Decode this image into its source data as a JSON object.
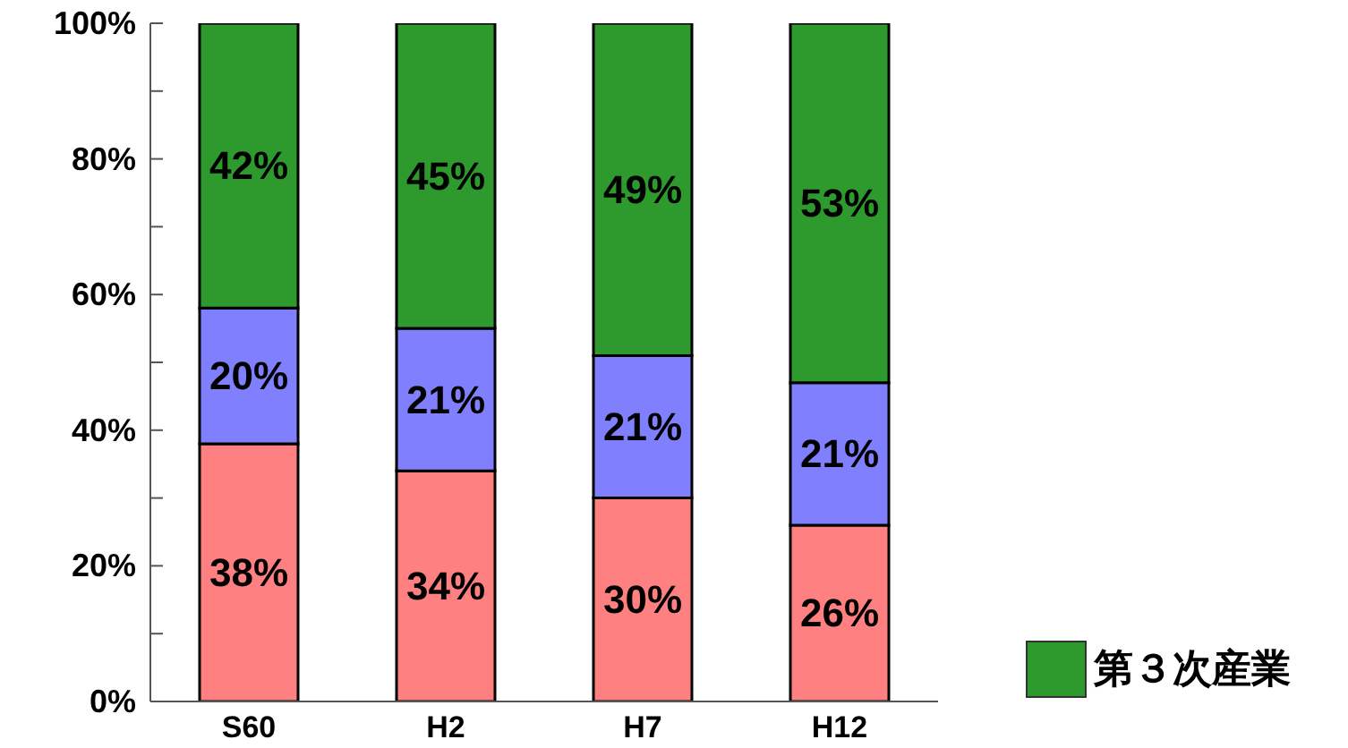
{
  "chart_data": {
    "type": "bar",
    "stacked": true,
    "categories": [
      "S60",
      "H2",
      "H7",
      "H12"
    ],
    "series": [
      {
        "color": "#ff8080",
        "values": [
          38,
          34,
          30,
          26
        ],
        "value_labels": [
          "38%",
          "34%",
          "30%",
          "26%"
        ]
      },
      {
        "color": "#8080ff",
        "values": [
          20,
          21,
          21,
          21
        ],
        "value_labels": [
          "20%",
          "21%",
          "21%",
          "21%"
        ]
      },
      {
        "name": "第３次産業",
        "color": "#2e9a2e",
        "values": [
          42,
          45,
          49,
          53
        ],
        "value_labels": [
          "42%",
          "45%",
          "49%",
          "53%"
        ]
      }
    ],
    "ylim": [
      0,
      100
    ],
    "yticks": [
      {
        "value": 0,
        "label": "0%"
      },
      {
        "value": 10,
        "label": null
      },
      {
        "value": 20,
        "label": "20%"
      },
      {
        "value": 30,
        "label": null
      },
      {
        "value": 40,
        "label": "40%"
      },
      {
        "value": 50,
        "label": null
      },
      {
        "value": 60,
        "label": "60%"
      },
      {
        "value": 70,
        "label": null
      },
      {
        "value": 80,
        "label": "80%"
      },
      {
        "value": 90,
        "label": null
      },
      {
        "value": 100,
        "label": "100%"
      }
    ],
    "legend": "bottom right",
    "grid": false
  }
}
